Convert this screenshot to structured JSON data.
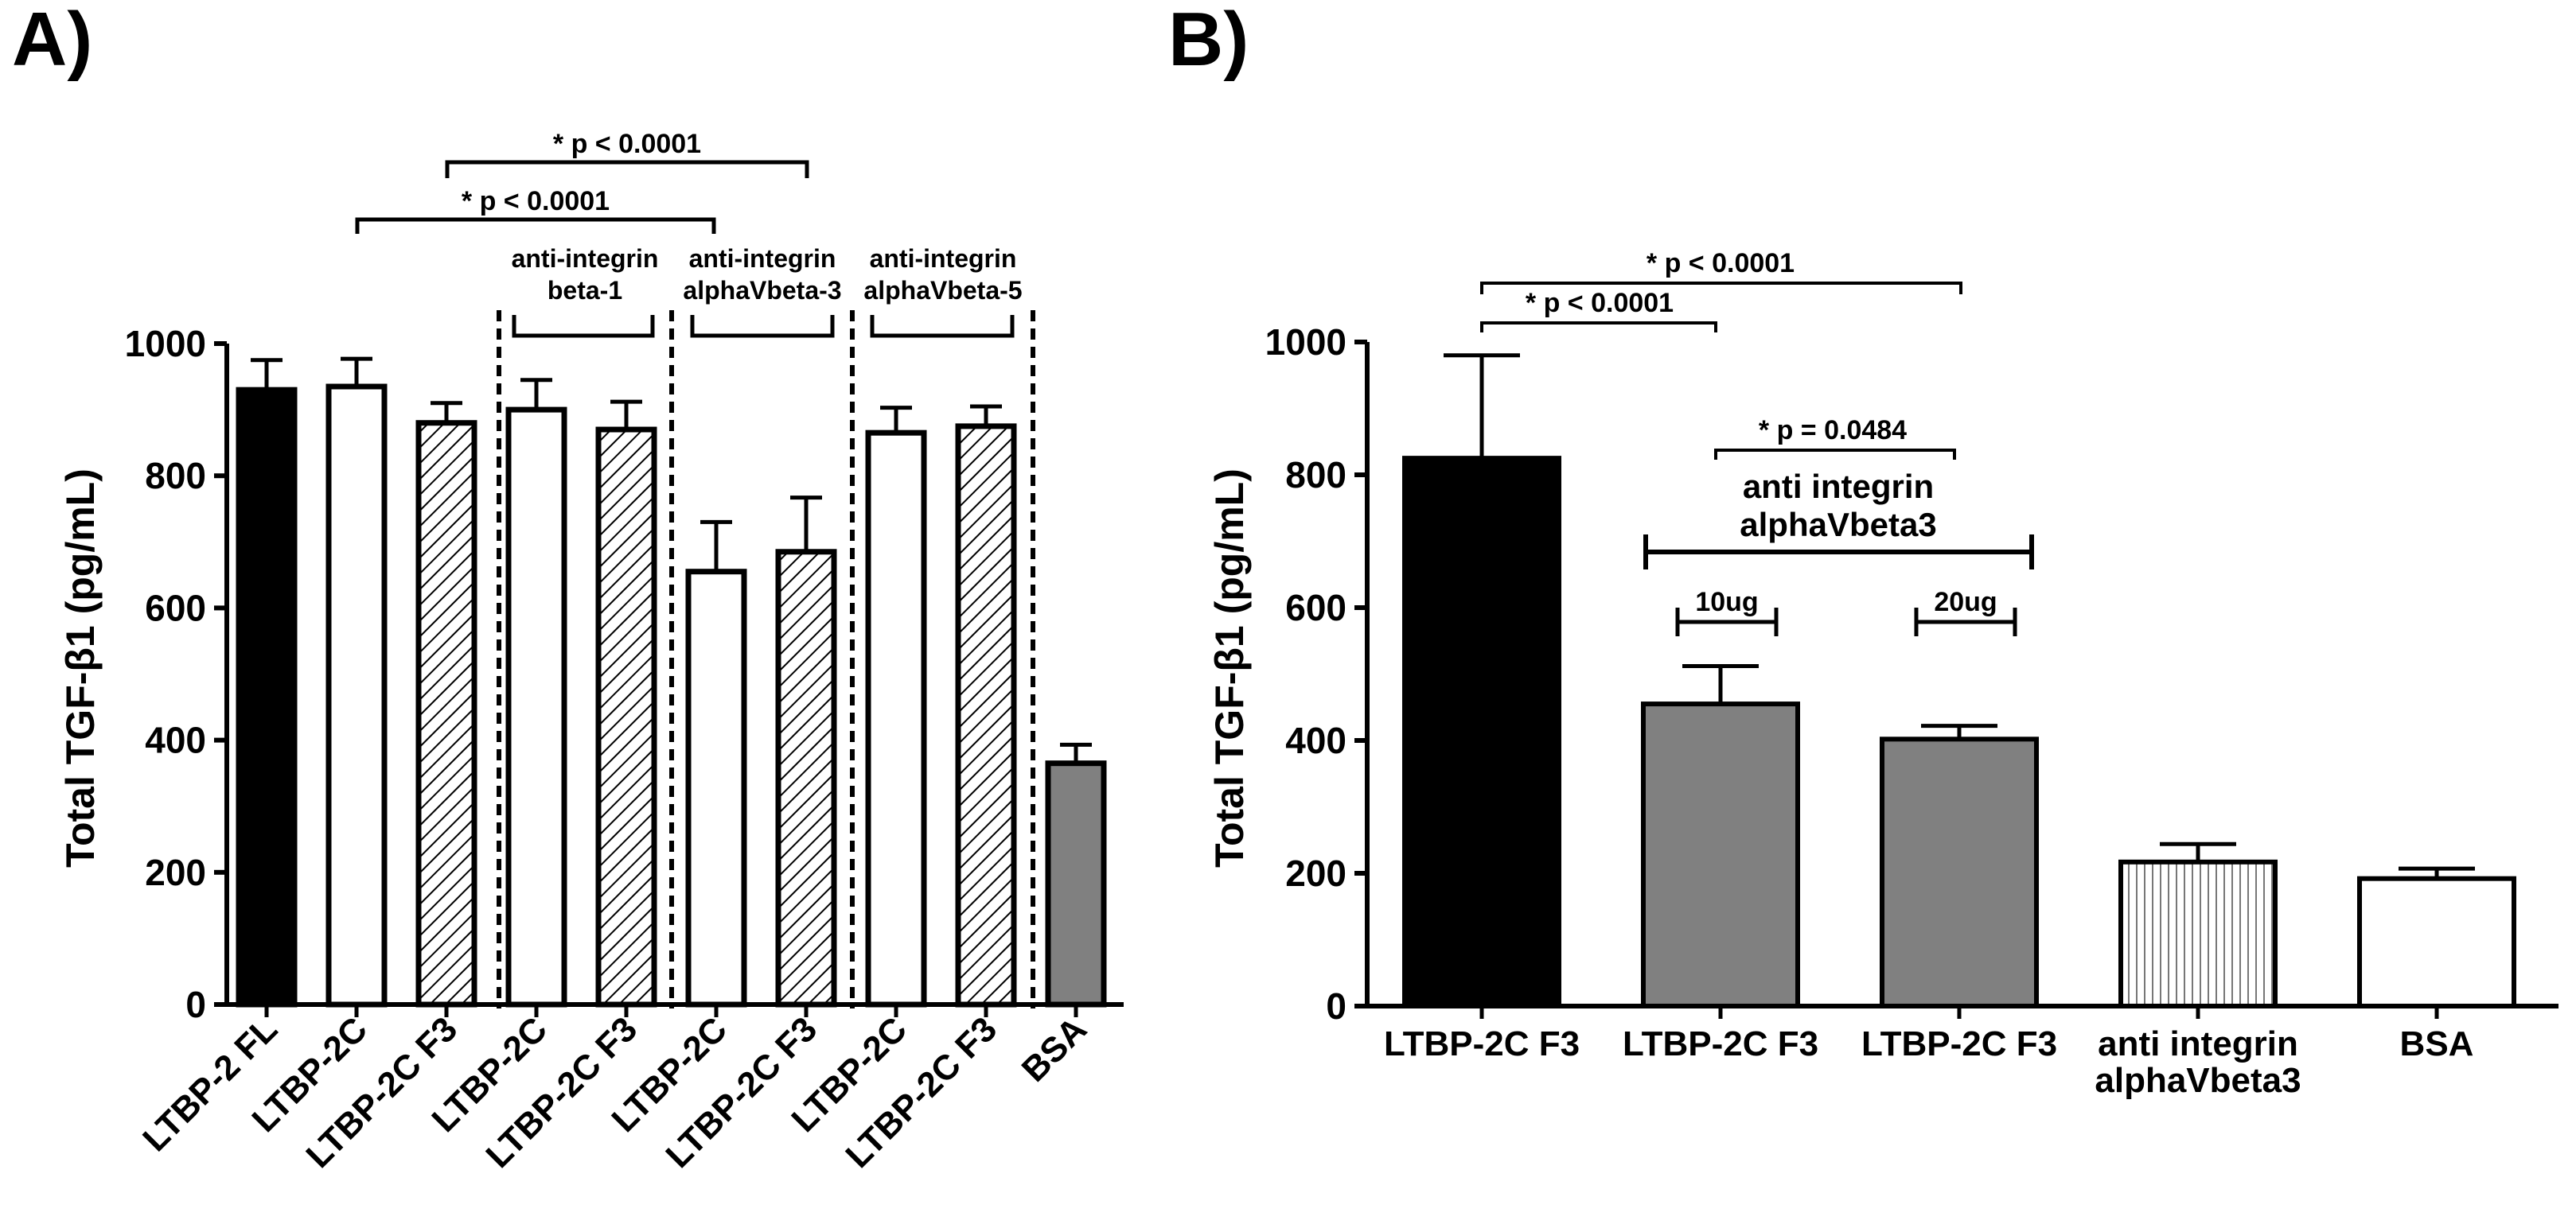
{
  "panels": {
    "a": {
      "letter": "A)",
      "ylabel": "Total TGF-β1 (pg/mL)",
      "sig1": "* p < 0.0001",
      "sig2": "* p < 0.0001",
      "groups": [
        {
          "line1": "anti-integrin",
          "line2": "beta-1"
        },
        {
          "line1": "anti-integrin",
          "line2": "alphaVbeta-3"
        },
        {
          "line1": "anti-integrin",
          "line2": "alphaVbeta-5"
        }
      ]
    },
    "b": {
      "letter": "B)",
      "ylabel": "Total TGF-β1 (pg/mL)",
      "sig_top": "* p < 0.0001",
      "sig_mid": "* p < 0.0001",
      "sig_low": "* p = 0.0484",
      "group_line1": "anti integrin",
      "group_line2": "alphaVbeta3",
      "dose1": "10ug",
      "dose2": "20ug"
    }
  },
  "colors": {
    "black": "#000000",
    "white": "#ffffff",
    "gray": "#808080"
  },
  "chart_data": [
    {
      "type": "bar",
      "title": "A)",
      "xlabel": "",
      "ylabel": "Total TGF-β1 (pg/mL)",
      "ylim": [
        0,
        1000
      ],
      "yticks": [
        0,
        200,
        400,
        600,
        800,
        1000
      ],
      "categories": [
        "LTBP-2 FL",
        "LTBP-2C",
        "LTBP-2C F3",
        "LTBP-2C",
        "LTBP-2C F3",
        "LTBP-2C",
        "LTBP-2C F3",
        "LTBP-2C",
        "LTBP-2C F3",
        "BSA"
      ],
      "values": [
        930,
        935,
        880,
        900,
        870,
        655,
        685,
        865,
        875,
        365
      ],
      "errors": [
        45,
        42,
        30,
        45,
        42,
        75,
        82,
        38,
        30,
        28
      ],
      "fills": [
        "black",
        "white",
        "hatch",
        "white",
        "hatch",
        "white",
        "hatch",
        "white",
        "hatch",
        "gray"
      ],
      "annotations": [
        "* p < 0.0001",
        "* p < 0.0001",
        "anti-integrin beta-1",
        "anti-integrin alphaVbeta-3",
        "anti-integrin alphaVbeta-5"
      ]
    },
    {
      "type": "bar",
      "title": "B)",
      "xlabel": "",
      "ylabel": "Total TGF-β1 (pg/mL)",
      "ylim": [
        0,
        1000
      ],
      "yticks": [
        0,
        200,
        400,
        600,
        800,
        1000
      ],
      "categories": [
        "LTBP-2C F3",
        "LTBP-2C F3",
        "LTBP-2C F3",
        "anti integrin alphaVbeta3",
        "BSA"
      ],
      "values": [
        825,
        455,
        402,
        217,
        192
      ],
      "errors": [
        155,
        57,
        20,
        27,
        15
      ],
      "fills": [
        "black",
        "gray",
        "gray",
        "vstripe",
        "white"
      ],
      "annotations": [
        "* p < 0.0001",
        "* p < 0.0001",
        "* p = 0.0484",
        "anti integrin alphaVbeta3",
        "10ug",
        "20ug"
      ]
    }
  ]
}
